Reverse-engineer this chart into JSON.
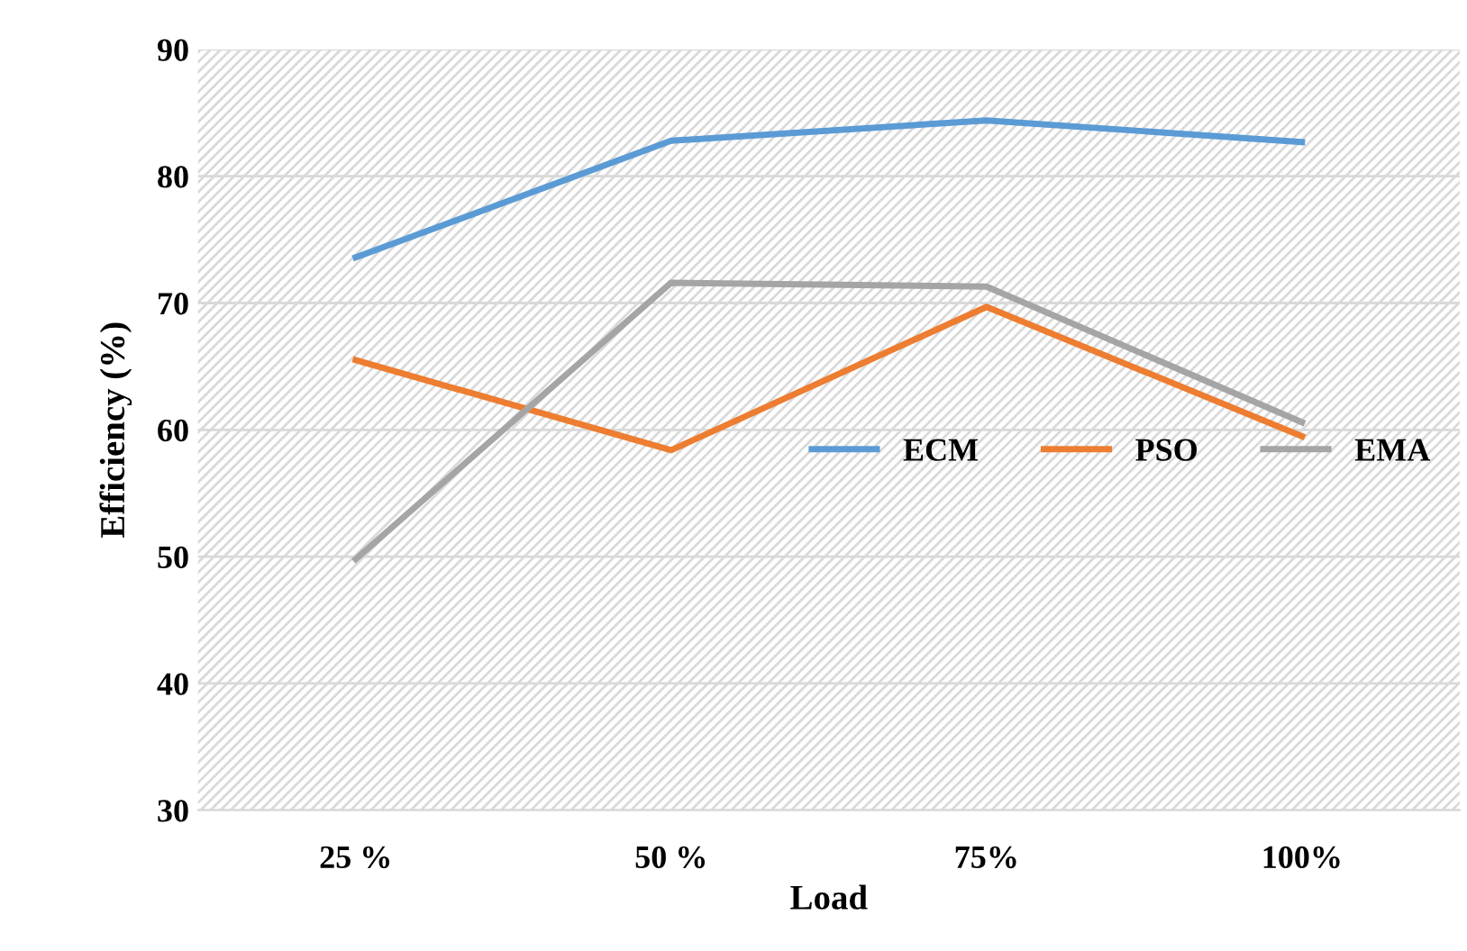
{
  "chart_data": {
    "type": "line",
    "xlabel": "Load",
    "ylabel": "Efficiency (%)",
    "categories": [
      "25 %",
      "50 %",
      "75%",
      "100%"
    ],
    "series": [
      {
        "name": "ECM",
        "color": "#5b9bd5",
        "values": [
          73.6,
          82.8,
          84.4,
          82.7
        ]
      },
      {
        "name": "PSO",
        "color": "#ed7d31",
        "values": [
          65.5,
          58.4,
          69.7,
          59.5
        ]
      },
      {
        "name": "EMA",
        "color": "#a5a5a5",
        "values": [
          49.8,
          71.6,
          71.3,
          60.6
        ]
      }
    ],
    "ylim": [
      30,
      90
    ],
    "yticks": [
      30,
      40,
      50,
      60,
      70,
      80,
      90
    ],
    "grid": "y",
    "legend": "center right",
    "marker": "none",
    "line_style": "solid"
  }
}
